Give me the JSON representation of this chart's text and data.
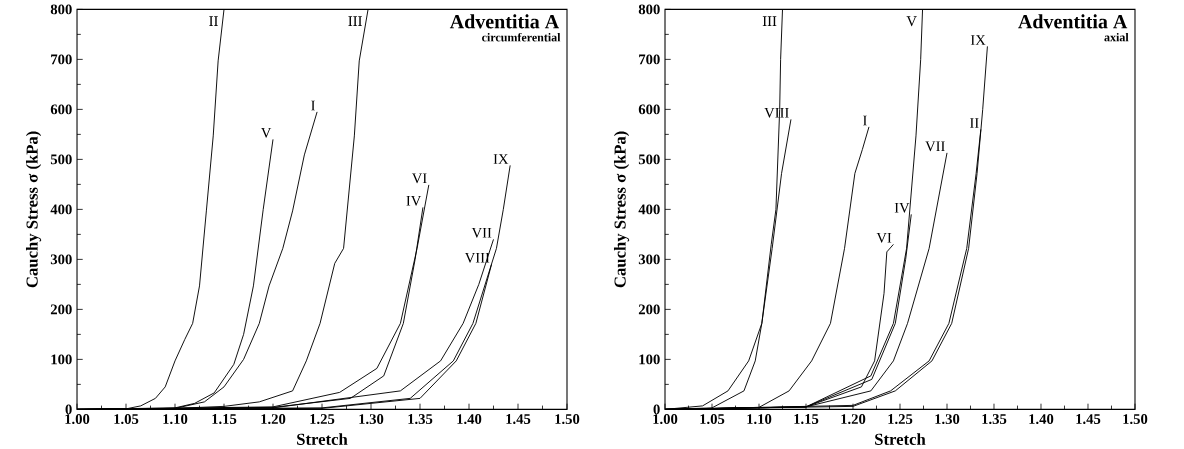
{
  "chart_data": [
    {
      "type": "line",
      "title": "Adventitia A",
      "subtitle": "circumferential",
      "xlabel": "Stretch",
      "ylabel": "Cauchy Stress σ (kPa)",
      "xlim": [
        1.0,
        1.5
      ],
      "ylim": [
        0,
        800
      ],
      "xticks": [
        {
          "value": 1.0,
          "label": "1.00"
        },
        {
          "value": 1.05,
          "label": "1.05"
        },
        {
          "value": 1.1,
          "label": "1.10"
        },
        {
          "value": 1.15,
          "label": "1.15"
        },
        {
          "value": 1.2,
          "label": "1.20"
        },
        {
          "value": 1.25,
          "label": "1.25"
        },
        {
          "value": 1.3,
          "label": "1.30"
        },
        {
          "value": 1.35,
          "label": "1.35"
        },
        {
          "value": 1.4,
          "label": "1.40"
        },
        {
          "value": 1.45,
          "label": "1.45"
        },
        {
          "value": 1.5,
          "label": "1.50"
        }
      ],
      "yticks": [
        0,
        100,
        200,
        300,
        400,
        500,
        600,
        700,
        800
      ],
      "grid": false,
      "legend": false,
      "marker": "none",
      "line_style": "solid",
      "series": [
        {
          "name": "I",
          "color": "#000000",
          "x": [
            1.0,
            1.1,
            1.13,
            1.15,
            1.17,
            1.186,
            1.196,
            1.21,
            1.22,
            1.232,
            1.245
          ],
          "values": [
            0,
            2,
            15,
            45,
            100,
            172,
            247,
            322,
            397,
            509,
            595
          ]
        },
        {
          "name": "II",
          "color": "#000000",
          "x": [
            1.0,
            1.05,
            1.065,
            1.08,
            1.09,
            1.1,
            1.11,
            1.118,
            1.125,
            1.132,
            1.139,
            1.144,
            1.15
          ],
          "values": [
            0,
            1,
            7,
            22,
            45,
            97,
            140,
            172,
            247,
            397,
            547,
            697,
            800
          ]
        },
        {
          "name": "III",
          "color": "#000000",
          "x": [
            1.0,
            1.1,
            1.15,
            1.186,
            1.22,
            1.234,
            1.248,
            1.263,
            1.272,
            1.283,
            1.288,
            1.297
          ],
          "values": [
            0,
            2,
            6,
            15,
            37,
            97,
            172,
            292,
            322,
            547,
            697,
            800
          ]
        },
        {
          "name": "IV",
          "color": "#000000",
          "x": [
            1.0,
            1.2,
            1.279,
            1.313,
            1.333,
            1.345,
            1.353
          ],
          "values": [
            0,
            4,
            22,
            67,
            172,
            300,
            404
          ]
        },
        {
          "name": "V",
          "color": "#000000",
          "x": [
            1.0,
            1.1,
            1.12,
            1.14,
            1.16,
            1.17,
            1.18,
            1.19,
            1.2
          ],
          "values": [
            0,
            3,
            12,
            33,
            90,
            150,
            247,
            400,
            540
          ]
        },
        {
          "name": "VI",
          "color": "#000000",
          "x": [
            1.0,
            1.2,
            1.268,
            1.306,
            1.33,
            1.347,
            1.359
          ],
          "values": [
            0,
            5,
            34,
            82,
            172,
            322,
            449
          ]
        },
        {
          "name": "VII",
          "color": "#000000",
          "x": [
            1.0,
            1.2,
            1.33,
            1.371,
            1.394,
            1.41,
            1.425
          ],
          "values": [
            0,
            3,
            37,
            97,
            172,
            250,
            340
          ]
        },
        {
          "name": "VIII",
          "color": "#000000",
          "x": [
            1.0,
            1.25,
            1.35,
            1.387,
            1.407,
            1.423
          ],
          "values": [
            0,
            2,
            22,
            97,
            172,
            290
          ]
        },
        {
          "name": "IX",
          "color": "#000000",
          "x": [
            1.0,
            1.25,
            1.34,
            1.384,
            1.404,
            1.428,
            1.435,
            1.442
          ],
          "values": [
            0,
            3,
            22,
            97,
            172,
            322,
            400,
            488
          ]
        }
      ]
    },
    {
      "type": "line",
      "title": "Adventitia A",
      "subtitle": "axial",
      "xlabel": "Stretch",
      "ylabel": "Cauchy Stress σ (kPa)",
      "xlim": [
        1.0,
        1.5
      ],
      "ylim": [
        0,
        800
      ],
      "xticks": [
        {
          "value": 1.0,
          "label": "1.00"
        },
        {
          "value": 1.05,
          "label": "1.05"
        },
        {
          "value": 1.1,
          "label": "1.10"
        },
        {
          "value": 1.15,
          "label": "1.15"
        },
        {
          "value": 1.2,
          "label": "1.20"
        },
        {
          "value": 1.25,
          "label": "1.25"
        },
        {
          "value": 1.3,
          "label": "1.30"
        },
        {
          "value": 1.35,
          "label": "1.35"
        },
        {
          "value": 1.4,
          "label": "1.40"
        },
        {
          "value": 1.45,
          "label": "1.45"
        },
        {
          "value": 1.5,
          "label": "1.50"
        }
      ],
      "yticks": [
        0,
        100,
        200,
        300,
        400,
        500,
        600,
        700,
        800
      ],
      "grid": false,
      "legend": false,
      "marker": "none",
      "line_style": "solid",
      "series": [
        {
          "name": "I",
          "color": "#000000",
          "x": [
            1.0,
            1.1,
            1.132,
            1.156,
            1.176,
            1.191,
            1.202,
            1.21,
            1.217
          ],
          "values": [
            0,
            4,
            37,
            97,
            172,
            322,
            472,
            520,
            565
          ]
        },
        {
          "name": "II",
          "color": "#000000",
          "x": [
            1.0,
            1.2,
            1.24,
            1.281,
            1.302,
            1.321,
            1.331,
            1.336
          ],
          "values": [
            0,
            8,
            37,
            97,
            172,
            322,
            472,
            560
          ]
        },
        {
          "name": "III",
          "color": "#000000",
          "x": [
            1.0,
            1.04,
            1.067,
            1.089,
            1.103,
            1.113,
            1.118,
            1.122,
            1.123,
            1.125
          ],
          "values": [
            0,
            7,
            37,
            97,
            172,
            330,
            400,
            600,
            700,
            800
          ]
        },
        {
          "name": "IV",
          "color": "#000000",
          "x": [
            1.0,
            1.15,
            1.22,
            1.245,
            1.256,
            1.262
          ],
          "values": [
            0,
            5,
            60,
            172,
            300,
            390
          ]
        },
        {
          "name": "V",
          "color": "#000000",
          "x": [
            1.0,
            1.15,
            1.219,
            1.243,
            1.257,
            1.267,
            1.272,
            1.274
          ],
          "values": [
            0,
            5,
            67,
            172,
            322,
            547,
            700,
            800
          ]
        },
        {
          "name": "VI",
          "color": "#000000",
          "x": [
            1.0,
            1.15,
            1.209,
            1.223,
            1.233,
            1.236,
            1.243
          ],
          "values": [
            0,
            5,
            45,
            97,
            232,
            315,
            330
          ]
        },
        {
          "name": "VII",
          "color": "#000000",
          "x": [
            1.0,
            1.15,
            1.219,
            1.243,
            1.258,
            1.281,
            1.3
          ],
          "values": [
            0,
            5,
            37,
            97,
            172,
            322,
            513
          ]
        },
        {
          "name": "VIII",
          "color": "#000000",
          "x": [
            1.0,
            1.05,
            1.084,
            1.096,
            1.103,
            1.114,
            1.124,
            1.134
          ],
          "values": [
            0,
            3,
            37,
            97,
            172,
            322,
            472,
            580
          ]
        },
        {
          "name": "IX",
          "color": "#000000",
          "x": [
            1.0,
            1.2,
            1.245,
            1.284,
            1.305,
            1.323,
            1.332,
            1.338,
            1.343
          ],
          "values": [
            0,
            6,
            37,
            97,
            172,
            322,
            472,
            600,
            726
          ]
        }
      ]
    }
  ]
}
